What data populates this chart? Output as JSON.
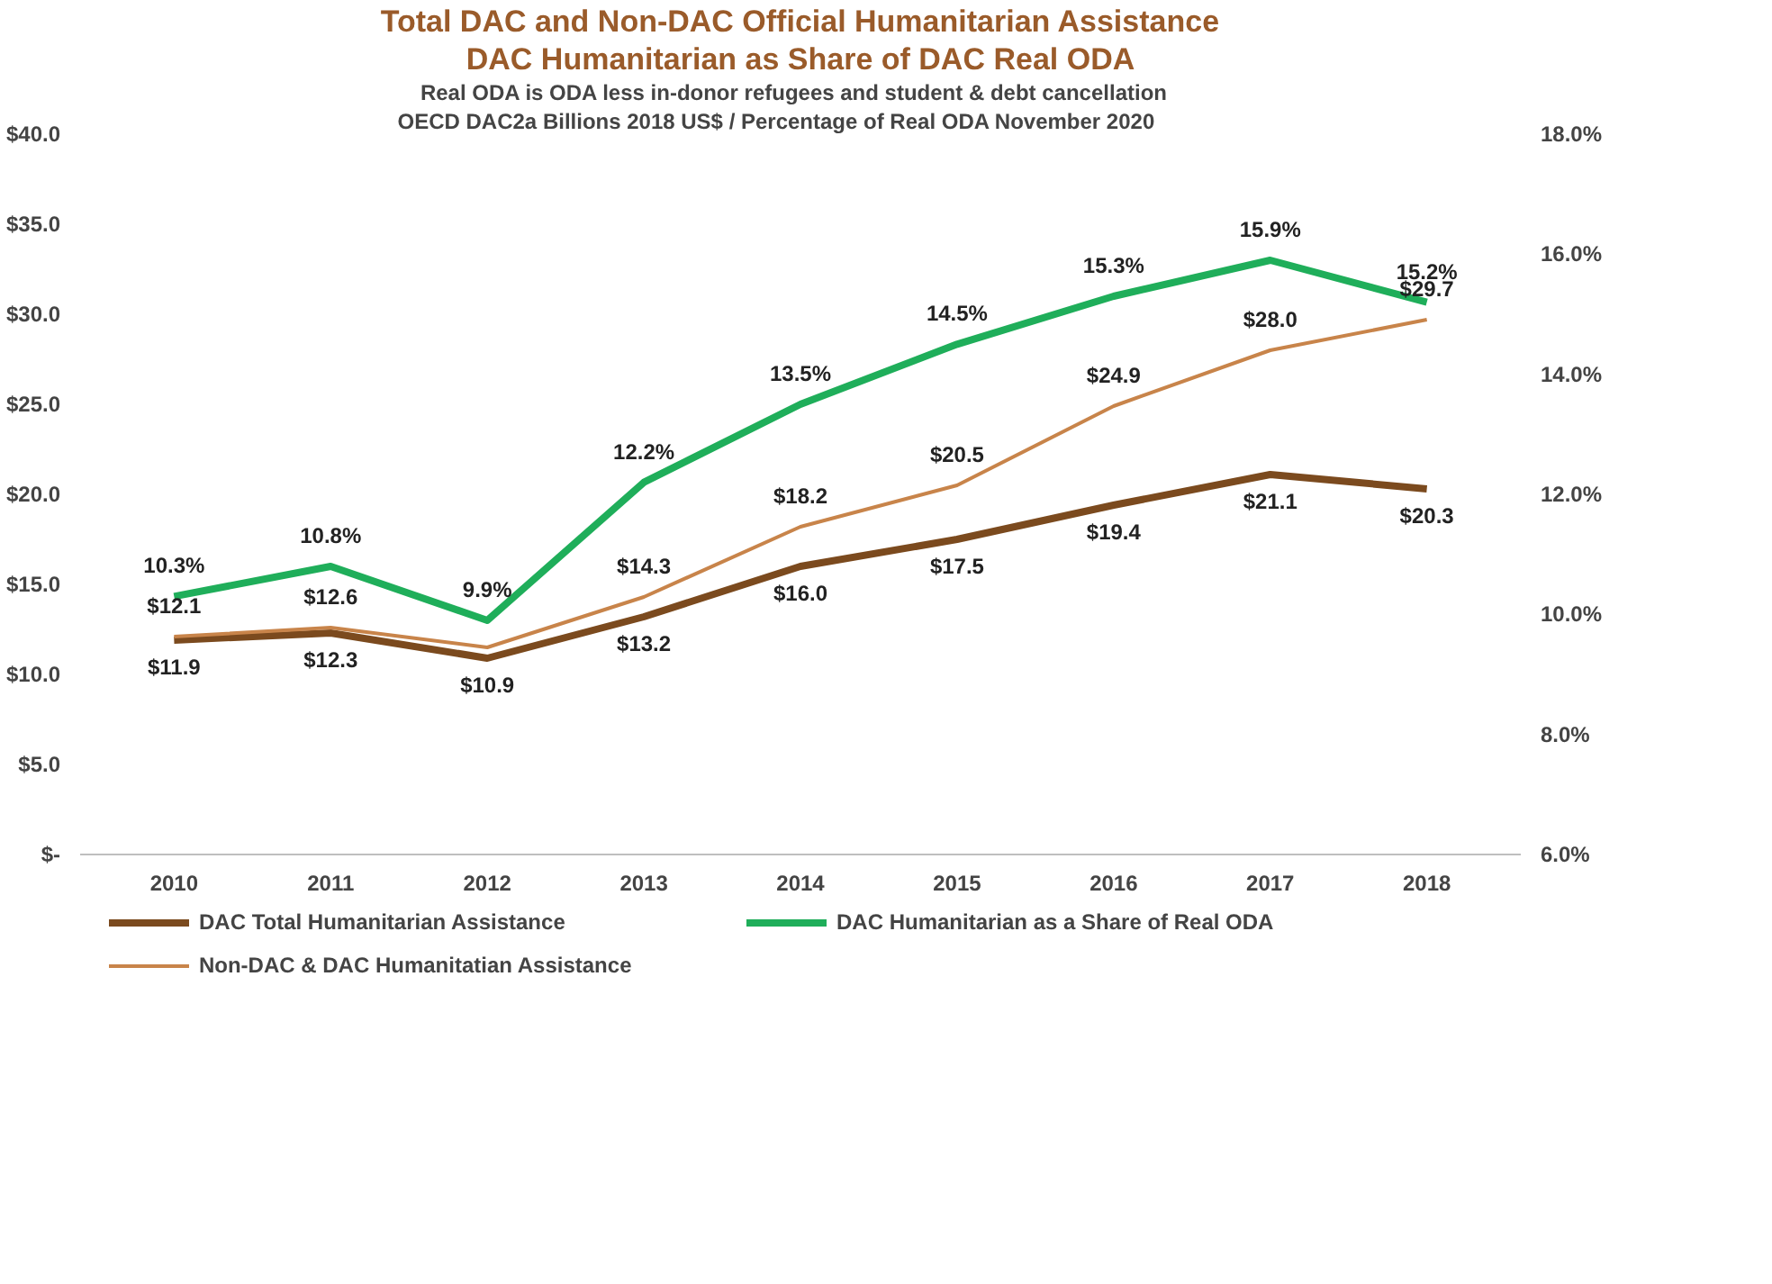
{
  "chart_data": {
    "type": "line",
    "title": "Total DAC and Non-DAC Official Humanitarian Assistance",
    "subtitle": "DAC Humanitarian as Share of DAC Real ODA",
    "annotations": [
      "Real ODA is ODA less in-donor  refugees and student &  debt cancellation",
      "OECD DAC2a     Billions 2018 US$ / Percentage of Real ODA     November 2020"
    ],
    "categories": [
      "2010",
      "2011",
      "2012",
      "2013",
      "2014",
      "2015",
      "2016",
      "2017",
      "2018"
    ],
    "series": [
      {
        "name": "DAC Total Humanitarian Assistance",
        "color": "#7b4a1e",
        "values": [
          11.9,
          12.3,
          10.9,
          13.2,
          16.0,
          17.5,
          19.4,
          21.1,
          20.3
        ],
        "value_labels": [
          "$11.9",
          "$12.3",
          "$10.9",
          "$13.2",
          "$16.0",
          "$17.5",
          "$19.4",
          "$21.1",
          "$20.3"
        ]
      },
      {
        "name": "Non-DAC & DAC Humanitatian Assistance",
        "color": "#c8844a",
        "values": [
          12.1,
          12.6,
          11.5,
          14.3,
          18.2,
          20.5,
          24.9,
          28.0,
          29.7
        ],
        "value_labels": [
          "$12.1",
          "$12.6",
          null,
          "$14.3",
          "$18.2",
          "$20.5",
          "$24.9",
          "$28.0",
          "$29.7"
        ]
      },
      {
        "name": "DAC Humanitarian as a Share of Real ODA",
        "color": "#1fae5a",
        "axis": "y2",
        "values": [
          10.3,
          10.8,
          9.9,
          12.2,
          13.5,
          14.5,
          15.3,
          15.9,
          15.2
        ],
        "value_labels": [
          "10.3%",
          "10.8%",
          "9.9%",
          "12.2%",
          "13.5%",
          "14.5%",
          "15.3%",
          "15.9%",
          "15.2%"
        ]
      }
    ],
    "ylim": [
      0,
      40
    ],
    "yticks": [
      {
        "value": 0,
        "label": "$-"
      },
      {
        "value": 5,
        "label": "$5.0"
      },
      {
        "value": 10,
        "label": "$10.0"
      },
      {
        "value": 15,
        "label": "$15.0"
      },
      {
        "value": 20,
        "label": "$20.0"
      },
      {
        "value": 25,
        "label": "$25.0"
      },
      {
        "value": 30,
        "label": "$30.0"
      },
      {
        "value": 35,
        "label": "$35.0"
      },
      {
        "value": 40,
        "label": "$40.0"
      }
    ],
    "y2lim": [
      6,
      18
    ],
    "y2ticks": [
      {
        "value": 6,
        "label": "6.0%"
      },
      {
        "value": 8,
        "label": "8.0%"
      },
      {
        "value": 10,
        "label": "10.0%"
      },
      {
        "value": 12,
        "label": "12.0%"
      },
      {
        "value": 14,
        "label": "14.0%"
      },
      {
        "value": 16,
        "label": "16.0%"
      },
      {
        "value": 18,
        "label": "18.0%"
      }
    ],
    "grid": false,
    "legend": "bottom",
    "marker": "none",
    "line_style": "solid"
  }
}
